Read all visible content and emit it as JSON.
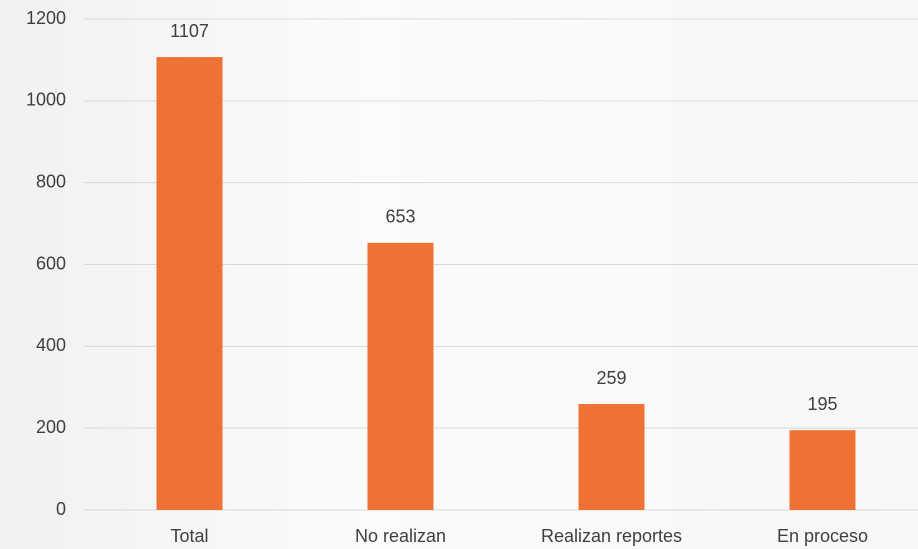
{
  "chart_data": {
    "type": "bar",
    "categories": [
      "Total",
      "No realizan",
      "Realizan reportes",
      "En proceso"
    ],
    "values": [
      1107,
      653,
      259,
      195
    ],
    "color": "#ed7233",
    "ylim": [
      0,
      1200
    ],
    "yticks": [
      0,
      200,
      400,
      600,
      800,
      1000,
      1200
    ],
    "grid": true
  }
}
